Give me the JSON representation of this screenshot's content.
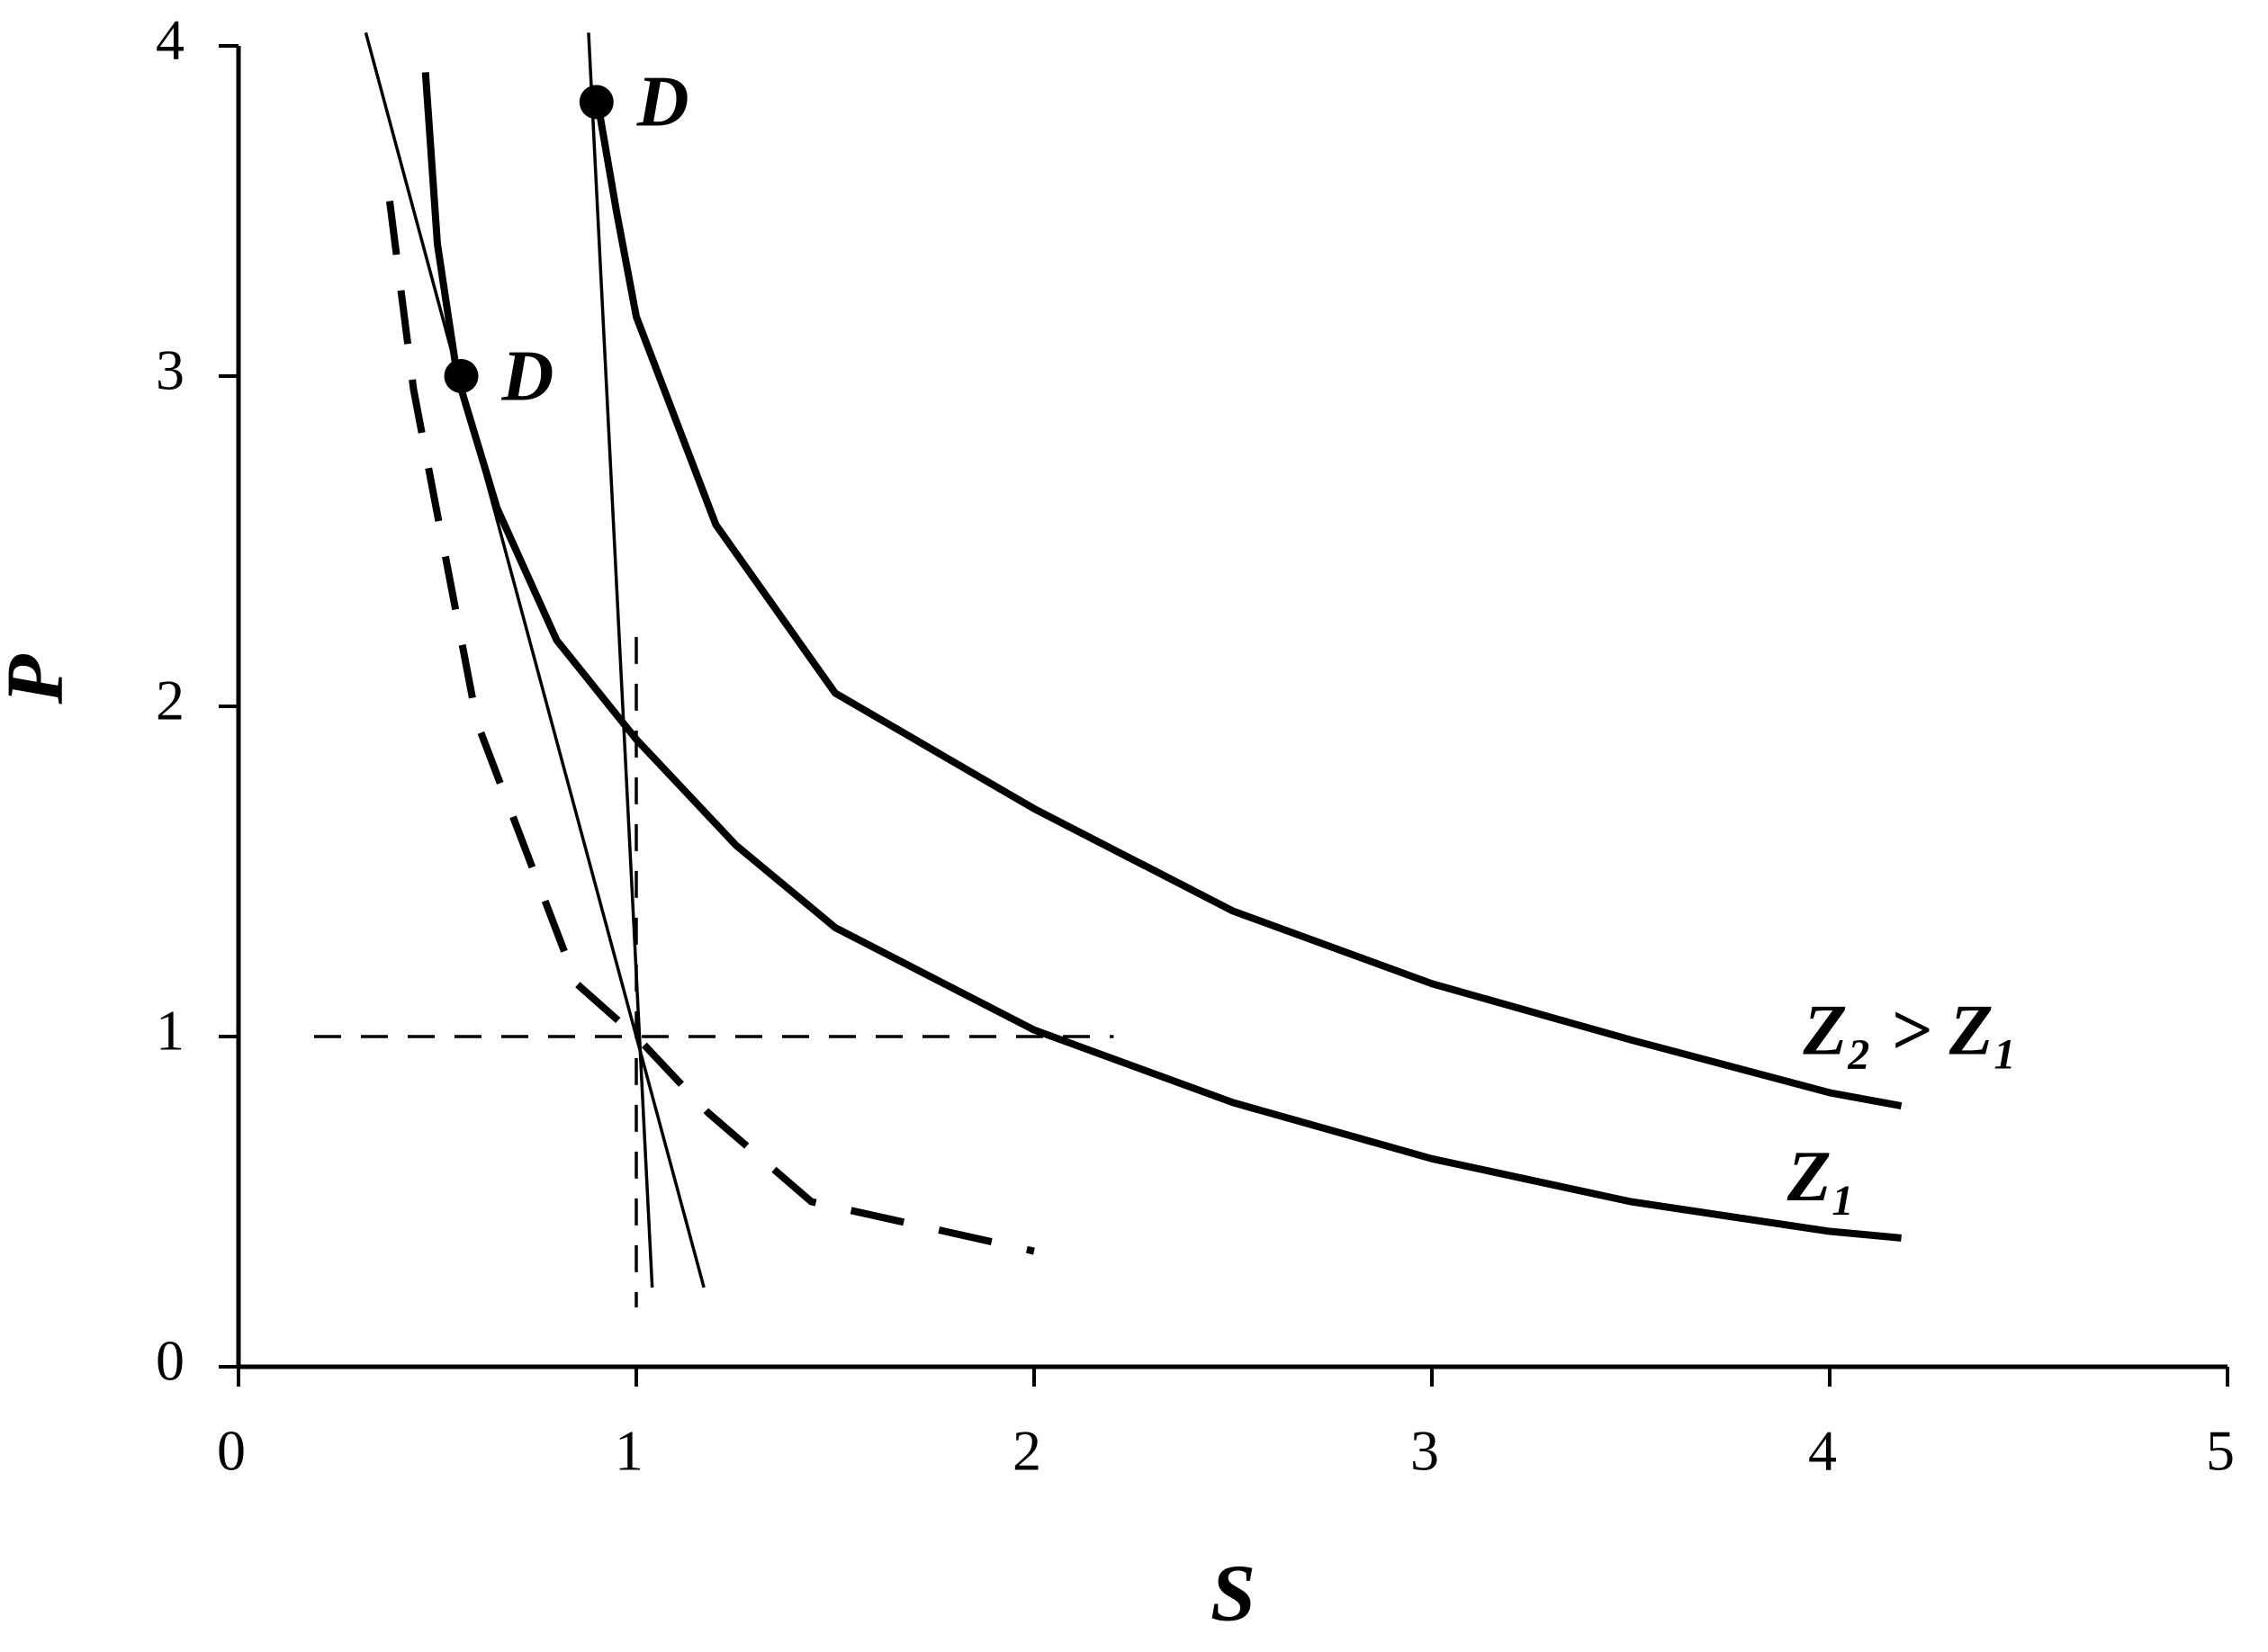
{
  "chart_data": {
    "type": "line",
    "x_label": "S",
    "y_label": "P",
    "xlim": [
      0,
      5
    ],
    "ylim": [
      0,
      4
    ],
    "xticks": [
      0,
      1,
      2,
      3,
      4,
      5
    ],
    "yticks": [
      0,
      1,
      2,
      3,
      4
    ],
    "color": "#000000",
    "series": [
      {
        "name": "Z₁",
        "style": "solid",
        "weight": "thick",
        "x": [
          0.47,
          0.5,
          0.55,
          0.65,
          0.8,
          1.0,
          1.25,
          1.5,
          2.0,
          2.5,
          3.0,
          3.5,
          4.0,
          4.18
        ],
        "values": [
          3.92,
          3.4,
          3.0,
          2.6,
          2.2,
          1.9,
          1.58,
          1.33,
          1.02,
          0.8,
          0.63,
          0.5,
          0.41,
          0.39
        ]
      },
      {
        "name": "Z₂ > Z₁",
        "style": "solid",
        "weight": "thick",
        "x": [
          0.9,
          0.95,
          1.0,
          1.2,
          1.5,
          2.0,
          2.5,
          3.0,
          3.5,
          4.0,
          4.18
        ],
        "values": [
          3.85,
          3.5,
          3.18,
          2.55,
          2.04,
          1.69,
          1.38,
          1.16,
          0.99,
          0.83,
          0.79
        ]
      },
      {
        "style": "dashed",
        "weight": "thick",
        "x": [
          0.38,
          0.44,
          0.6,
          0.85,
          1.0,
          1.18,
          1.44,
          2.0
        ],
        "values": [
          3.53,
          2.96,
          1.95,
          1.16,
          1.0,
          0.77,
          0.5,
          0.35
        ]
      },
      {
        "style": "solid",
        "weight": "thin",
        "x": [
          0.32,
          1.17
        ],
        "values": [
          4.04,
          0.24
        ]
      },
      {
        "style": "solid",
        "weight": "thin",
        "x": [
          0.88,
          1.04
        ],
        "values": [
          4.04,
          0.24
        ]
      },
      {
        "style": "dashed",
        "weight": "thin",
        "x": [
          1.0,
          1.0
        ],
        "values": [
          2.21,
          0.18
        ]
      },
      {
        "style": "dashed",
        "weight": "thin",
        "x": [
          0.19,
          2.2
        ],
        "values": [
          1.0,
          1.0
        ]
      },
      {
        "style": "points",
        "x": [
          0.56,
          0.9
        ],
        "values": [
          3.0,
          3.83
        ],
        "labels": [
          "D",
          "D"
        ]
      }
    ]
  }
}
